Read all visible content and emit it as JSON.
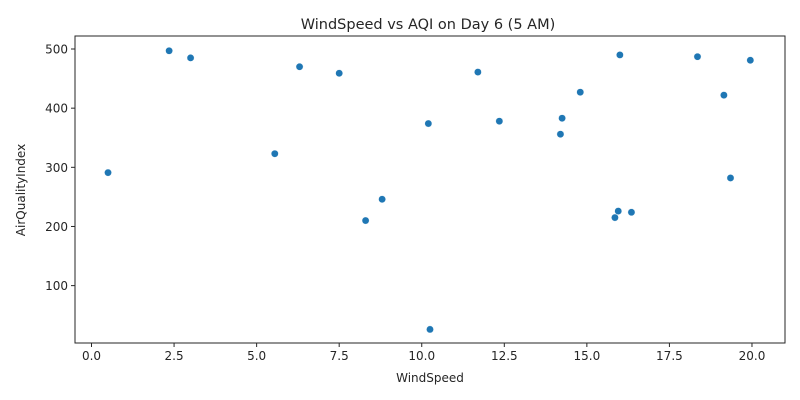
{
  "chart_data": {
    "type": "scatter",
    "title": "WindSpeed vs AQI on Day 6 (5 AM)",
    "xlabel": "WindSpeed",
    "ylabel": "AirQualityIndex",
    "xlim": [
      -0.5,
      21.0
    ],
    "ylim": [
      3,
      522
    ],
    "xticks": [
      0.0,
      2.5,
      5.0,
      7.5,
      10.0,
      12.5,
      15.0,
      17.5,
      20.0
    ],
    "xtick_labels": [
      "0.0",
      "2.5",
      "5.0",
      "7.5",
      "10.0",
      "12.5",
      "15.0",
      "17.5",
      "20.0"
    ],
    "yticks": [
      100,
      200,
      300,
      400,
      500
    ],
    "ytick_labels": [
      "100",
      "200",
      "300",
      "400",
      "500"
    ],
    "grid": false,
    "legend": "none",
    "marker_color": "#1f77b4",
    "points": [
      {
        "x": 0.5,
        "y": 291
      },
      {
        "x": 2.35,
        "y": 497
      },
      {
        "x": 3.0,
        "y": 485
      },
      {
        "x": 5.55,
        "y": 323
      },
      {
        "x": 6.3,
        "y": 470
      },
      {
        "x": 7.5,
        "y": 459
      },
      {
        "x": 8.3,
        "y": 210
      },
      {
        "x": 8.8,
        "y": 246
      },
      {
        "x": 10.2,
        "y": 374
      },
      {
        "x": 10.25,
        "y": 26
      },
      {
        "x": 11.7,
        "y": 461
      },
      {
        "x": 12.35,
        "y": 378
      },
      {
        "x": 14.2,
        "y": 356
      },
      {
        "x": 14.25,
        "y": 383
      },
      {
        "x": 14.8,
        "y": 427
      },
      {
        "x": 15.85,
        "y": 215
      },
      {
        "x": 15.95,
        "y": 226
      },
      {
        "x": 16.0,
        "y": 490
      },
      {
        "x": 16.35,
        "y": 224
      },
      {
        "x": 18.35,
        "y": 487
      },
      {
        "x": 19.15,
        "y": 422
      },
      {
        "x": 19.35,
        "y": 282
      },
      {
        "x": 19.95,
        "y": 481
      }
    ]
  }
}
